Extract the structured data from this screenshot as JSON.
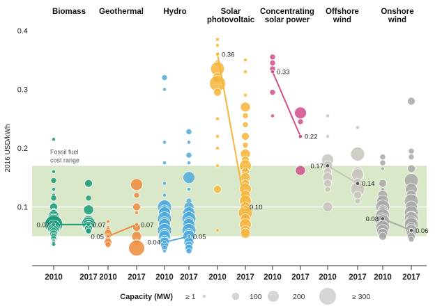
{
  "chart_data": {
    "type": "scatter",
    "ylabel": "2016 USD/kWh",
    "ylim": [
      0,
      0.42
    ],
    "yticks": [
      0.1,
      0.2,
      0.3,
      0.4
    ],
    "ytick_labels": [
      "0.1",
      "0.2",
      "0.3",
      "0.4"
    ],
    "band": {
      "label_lines": [
        "Fossil fuel",
        "cost range"
      ],
      "range": [
        0.05,
        0.17
      ],
      "color": "#d9e8c9"
    },
    "colors": {
      "Biomass": "#1a9a78",
      "Geothermal": "#ee8a3c",
      "Hydro": "#4fa9dc",
      "Solar photovoltaic": "#f6b53a",
      "Concentrating solar power": "#cf4e8b",
      "Offshore wind": "#c8c3bc",
      "Onshore wind": "#a9a8a8"
    },
    "technologies": [
      {
        "name": "Biomass",
        "label_lines": [
          "Biomass"
        ],
        "color": "#1a9a78",
        "avg_2010": 0.07,
        "avg_2017": 0.07,
        "label_2010": "0.07",
        "label_2017": "0.07",
        "label_pos_2010": "left",
        "label_pos_2017": "right"
      },
      {
        "name": "Geothermal",
        "label_lines": [
          "Geothermal"
        ],
        "color": "#ee8a3c",
        "avg_2010": 0.05,
        "avg_2017": 0.07,
        "label_2010": "0.05",
        "label_2017": "0.07",
        "label_pos_2010": "left",
        "label_pos_2017": "right"
      },
      {
        "name": "Hydro",
        "label_lines": [
          "Hydro"
        ],
        "color": "#4fa9dc",
        "avg_2010": 0.04,
        "avg_2017": 0.05,
        "label_2010": "0.04",
        "label_2017": "0.05",
        "label_pos_2010": "left",
        "label_pos_2017": "right"
      },
      {
        "name": "Solar photovoltaic",
        "label_lines": [
          "Solar",
          "photovoltaic"
        ],
        "color": "#f6b53a",
        "avg_2010": 0.36,
        "avg_2017": 0.1,
        "label_2010": "0.36",
        "label_2017": "0.10",
        "label_pos_2010": "right",
        "label_pos_2017": "right"
      },
      {
        "name": "Concentrating solar power",
        "label_lines": [
          "Concentrating",
          "solar power"
        ],
        "color": "#cf4e8b",
        "avg_2010": 0.33,
        "avg_2017": 0.22,
        "label_2010": "0.33",
        "label_2017": "0.22",
        "label_pos_2010": "right",
        "label_pos_2017": "right"
      },
      {
        "name": "Offshore wind",
        "label_lines": [
          "Offshore",
          "wind"
        ],
        "color": "#c8c3bc",
        "avg_2010": 0.17,
        "avg_2017": 0.14,
        "label_2010": "0.17",
        "label_2017": "0.14",
        "label_pos_2010": "left",
        "label_pos_2017": "right"
      },
      {
        "name": "Onshore wind",
        "label_lines": [
          "Onshore",
          "wind"
        ],
        "color": "#a9a8a8",
        "avg_2010": 0.08,
        "avg_2017": 0.06,
        "label_2010": "0.08",
        "label_2017": "0.06",
        "label_pos_2010": "left",
        "label_pos_2017": "right"
      }
    ],
    "years": [
      "2010",
      "2017"
    ],
    "points": [
      {
        "t": 0,
        "yr": 0,
        "vals": [
          0.215,
          0.16,
          0.145,
          0.13,
          0.12,
          0.115,
          0.105,
          0.1,
          0.095,
          0.092,
          0.09,
          0.087,
          0.085,
          0.083,
          0.08,
          0.078,
          0.076,
          0.074,
          0.072,
          0.07,
          0.068,
          0.066,
          0.064,
          0.062,
          0.06,
          0.058,
          0.056,
          0.054,
          0.052,
          0.05,
          0.048,
          0.046,
          0.044,
          0.042,
          0.04,
          0.038,
          0.036
        ],
        "caps": [
          1,
          1,
          2,
          1,
          1,
          2,
          1,
          3,
          1,
          2,
          1,
          4,
          2,
          5,
          3,
          6,
          4,
          7,
          3,
          8,
          4,
          6,
          3,
          5,
          4,
          3,
          2,
          3,
          2,
          2,
          1,
          2,
          1,
          1,
          1,
          1,
          1
        ]
      },
      {
        "t": 0,
        "yr": 1,
        "vals": [
          0.14,
          0.115,
          0.095,
          0.075,
          0.073,
          0.071,
          0.069,
          0.067,
          0.065,
          0.063,
          0.061,
          0.059
        ],
        "caps": [
          3,
          2,
          4,
          5,
          4,
          6,
          5,
          4,
          3,
          3,
          2,
          2
        ]
      },
      {
        "t": 1,
        "yr": 0,
        "vals": [
          0.075,
          0.065,
          0.06,
          0.055,
          0.05,
          0.045,
          0.04,
          0.036
        ],
        "caps": [
          1,
          1,
          2,
          3,
          2,
          2,
          3,
          2
        ]
      },
      {
        "t": 1,
        "yr": 1,
        "vals": [
          0.138,
          0.12,
          0.1,
          0.09,
          0.065,
          0.05,
          0.04,
          0.03
        ],
        "caps": [
          5,
          2,
          3,
          1,
          3,
          4,
          2,
          7
        ]
      },
      {
        "t": 2,
        "yr": 0,
        "vals": [
          0.32,
          0.3,
          0.21,
          0.175,
          0.14,
          0.12,
          0.105,
          0.1,
          0.095,
          0.09,
          0.085,
          0.08,
          0.075,
          0.07,
          0.065,
          0.06,
          0.055,
          0.05,
          0.045,
          0.04,
          0.035,
          0.03,
          0.025
        ],
        "caps": [
          2,
          1,
          1,
          1,
          1,
          1,
          3,
          6,
          4,
          5,
          3,
          6,
          4,
          5,
          3,
          6,
          4,
          5,
          3,
          4,
          3,
          2,
          1
        ]
      },
      {
        "t": 2,
        "yr": 1,
        "vals": [
          0.228,
          0.21,
          0.188,
          0.175,
          0.15,
          0.13,
          0.11,
          0.1,
          0.09,
          0.085,
          0.08,
          0.075,
          0.07,
          0.065,
          0.06,
          0.055,
          0.05,
          0.045,
          0.04,
          0.035,
          0.03,
          0.025
        ],
        "caps": [
          2,
          1,
          2,
          1,
          5,
          1,
          2,
          4,
          5,
          3,
          6,
          4,
          5,
          3,
          6,
          4,
          5,
          3,
          4,
          3,
          3,
          2
        ]
      },
      {
        "t": 3,
        "yr": 0,
        "vals": [
          0.385,
          0.375,
          0.36,
          0.345,
          0.335,
          0.32,
          0.31,
          0.295,
          0.25,
          0.22,
          0.2,
          0.17,
          0.13,
          0.06
        ],
        "caps": [
          1,
          1,
          1,
          2,
          6,
          4,
          7,
          3,
          1,
          1,
          1,
          1,
          3,
          1
        ]
      },
      {
        "t": 3,
        "yr": 1,
        "vals": [
          0.35,
          0.33,
          0.29,
          0.27,
          0.255,
          0.24,
          0.22,
          0.205,
          0.19,
          0.18,
          0.17,
          0.16,
          0.15,
          0.14,
          0.13,
          0.12,
          0.11,
          0.1,
          0.09,
          0.08,
          0.07,
          0.06,
          0.055
        ],
        "caps": [
          1,
          1,
          1,
          4,
          2,
          2,
          3,
          2,
          4,
          3,
          5,
          3,
          4,
          3,
          5,
          4,
          5,
          4,
          6,
          4,
          5,
          4,
          4
        ]
      },
      {
        "t": 4,
        "yr": 0,
        "vals": [
          0.355,
          0.345,
          0.335,
          0.295,
          0.255
        ],
        "caps": [
          2,
          2,
          2,
          2,
          1
        ]
      },
      {
        "t": 4,
        "yr": 1,
        "vals": [
          0.26,
          0.245,
          0.22,
          0.162
        ],
        "caps": [
          5,
          2,
          1,
          4
        ]
      },
      {
        "t": 5,
        "yr": 0,
        "vals": [
          0.255,
          0.22,
          0.18,
          0.17,
          0.16,
          0.15,
          0.14,
          0.13,
          0.1
        ],
        "caps": [
          1,
          1,
          5,
          4,
          3,
          4,
          3,
          2,
          4
        ]
      },
      {
        "t": 5,
        "yr": 1,
        "vals": [
          0.235,
          0.19,
          0.16,
          0.155,
          0.14,
          0.13,
          0.12,
          0.11
        ],
        "caps": [
          1,
          6,
          4,
          5,
          4,
          6,
          3,
          2
        ]
      },
      {
        "t": 6,
        "yr": 0,
        "vals": [
          0.185,
          0.175,
          0.165,
          0.14,
          0.13,
          0.12,
          0.11,
          0.1,
          0.095,
          0.09,
          0.085,
          0.08,
          0.075,
          0.07,
          0.065,
          0.06,
          0.055,
          0.05
        ],
        "caps": [
          2,
          2,
          1,
          3,
          1,
          4,
          5,
          6,
          4,
          5,
          6,
          5,
          6,
          4,
          6,
          5,
          4,
          3
        ]
      },
      {
        "t": 6,
        "yr": 1,
        "vals": [
          0.28,
          0.195,
          0.185,
          0.165,
          0.145,
          0.13,
          0.12,
          0.11,
          0.1,
          0.09,
          0.085,
          0.08,
          0.075,
          0.07,
          0.065,
          0.06,
          0.055,
          0.05,
          0.045
        ],
        "caps": [
          3,
          2,
          2,
          3,
          6,
          5,
          4,
          6,
          5,
          6,
          4,
          6,
          5,
          6,
          4,
          5,
          4,
          3,
          2
        ]
      }
    ],
    "legend": {
      "title": "Capacity (MW)",
      "items": [
        {
          "label": "≥ 1",
          "size": 1
        },
        {
          "label": "100",
          "size": 3
        },
        {
          "label": "200",
          "size": 5
        },
        {
          "label": "≥ 300",
          "size": 8
        }
      ]
    }
  }
}
